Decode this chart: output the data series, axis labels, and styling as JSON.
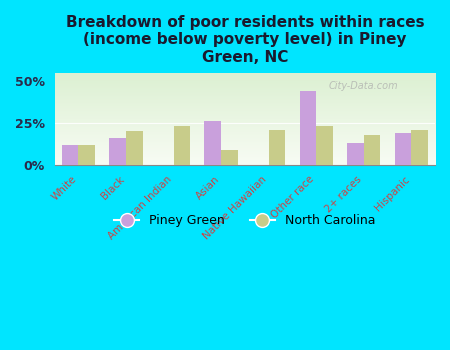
{
  "title": "Breakdown of poor residents within races\n(income below poverty level) in Piney\nGreen, NC",
  "categories": [
    "White",
    "Black",
    "American Indian",
    "Asian",
    "Native Hawaiian",
    "Other race",
    "2+ races",
    "Hispanic"
  ],
  "piney_green": [
    12,
    16,
    0,
    26,
    0,
    44,
    13,
    19
  ],
  "north_carolina": [
    12,
    20,
    23,
    9,
    21,
    23,
    18,
    21
  ],
  "piney_green_color": "#c9a0dc",
  "north_carolina_color": "#c8cc8a",
  "background_outer": "#00e5ff",
  "title_color": "#1a1a2e",
  "axis_label_color": "#cc4444",
  "ytick_labels": [
    "0%",
    "25%",
    "50%"
  ],
  "ytick_values": [
    0,
    25,
    50
  ],
  "ylim": [
    0,
    55
  ],
  "bar_width": 0.35,
  "watermark": "City-Data.com"
}
